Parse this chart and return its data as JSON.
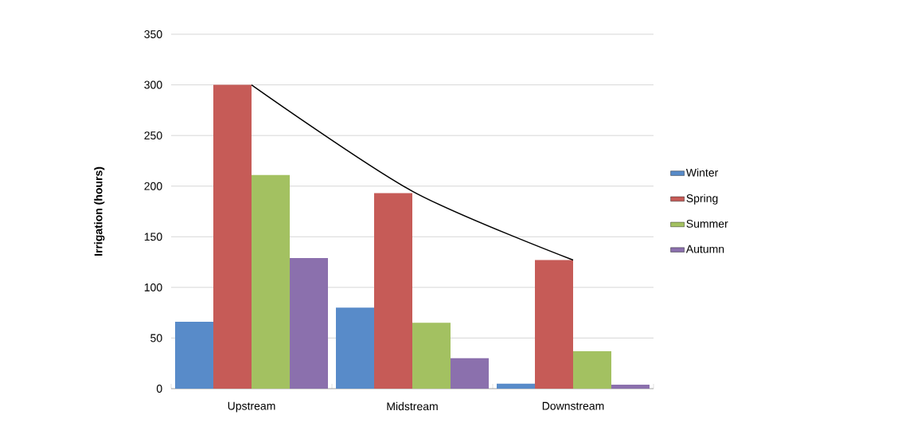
{
  "chart_data": {
    "type": "bar",
    "categories": [
      "Upstream",
      "Midstream",
      "Downstream"
    ],
    "ylabel": "Irrigation (hours)",
    "ylim": [
      0,
      350
    ],
    "yticks": [
      0,
      50,
      100,
      150,
      200,
      250,
      300,
      350
    ],
    "grid": "y",
    "legend": "right",
    "series": [
      {
        "name": "Winter",
        "color": "#588bc9",
        "values": [
          66,
          80,
          5
        ]
      },
      {
        "name": "Spring",
        "color": "#c65b57",
        "values": [
          300,
          193,
          127
        ]
      },
      {
        "name": "Summer",
        "color": "#a3c161",
        "values": [
          211,
          65,
          37
        ]
      },
      {
        "name": "Autumn",
        "color": "#8b70ad",
        "values": [
          129,
          30,
          4
        ]
      },
      {
        "type": "line",
        "color": "#000000",
        "values": [
          300,
          195,
          127
        ]
      }
    ]
  }
}
